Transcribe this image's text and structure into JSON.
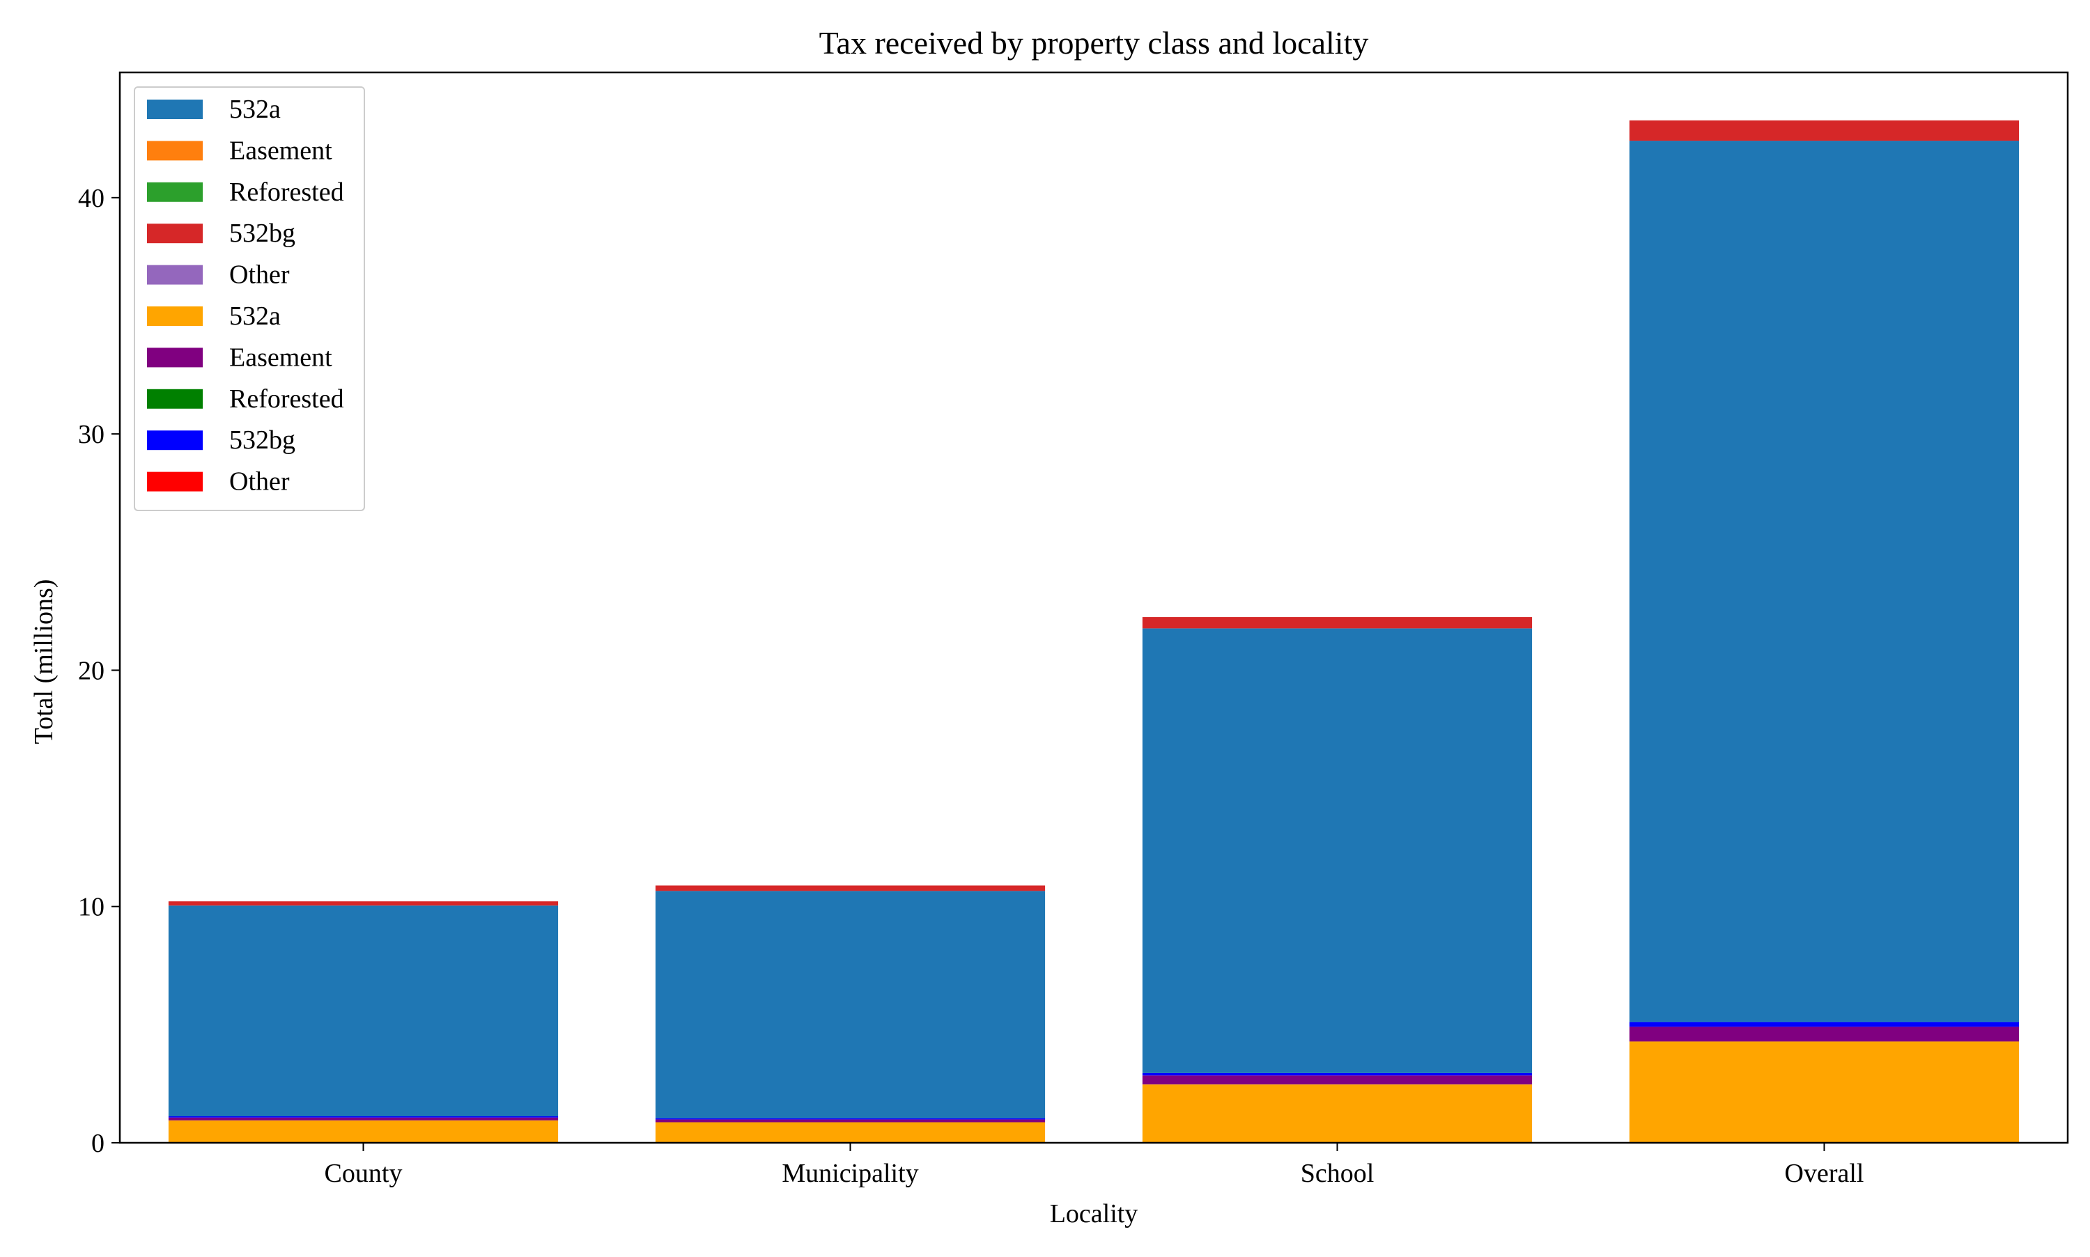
{
  "chart_data": {
    "type": "bar",
    "stacked": true,
    "title": "Tax received by property class and locality",
    "xlabel": "Locality",
    "ylabel": "Total (millions)",
    "categories": [
      "County",
      "Municipality",
      "School",
      "Overall"
    ],
    "ylim": [
      0,
      45.3
    ],
    "yticks": [
      0,
      10,
      20,
      30,
      40
    ],
    "grid": false,
    "legend_position": "top-left",
    "series": [
      {
        "name": "532a",
        "color": "#ffa500",
        "values": [
          0.95,
          0.87,
          2.47,
          4.29
        ]
      },
      {
        "name": "Easement",
        "color": "#800080",
        "values": [
          0.12,
          0.12,
          0.38,
          0.62
        ]
      },
      {
        "name": "Reforested",
        "color": "#008000",
        "values": [
          0.0,
          0.0,
          0.0,
          0.0
        ]
      },
      {
        "name": "532bg",
        "color": "#0000ff",
        "values": [
          0.05,
          0.05,
          0.1,
          0.2
        ]
      },
      {
        "name": "Other",
        "color": "#ff0000",
        "values": [
          0.0,
          0.0,
          0.0,
          0.0
        ]
      },
      {
        "name": "532a",
        "color": "#1f77b4",
        "values": [
          8.92,
          9.62,
          18.82,
          37.3
        ]
      },
      {
        "name": "Easement",
        "color": "#ff7f0e",
        "values": [
          0.0,
          0.0,
          0.0,
          0.0
        ]
      },
      {
        "name": "Reforested",
        "color": "#2ca02c",
        "values": [
          0.0,
          0.0,
          0.0,
          0.0
        ]
      },
      {
        "name": "532bg",
        "color": "#d62728",
        "values": [
          0.18,
          0.23,
          0.48,
          0.86
        ]
      },
      {
        "name": "Other",
        "color": "#9467bd",
        "values": [
          0.0,
          0.0,
          0.0,
          0.0
        ]
      }
    ],
    "legend_order": [
      5,
      6,
      7,
      8,
      9,
      0,
      1,
      2,
      3,
      4
    ]
  }
}
